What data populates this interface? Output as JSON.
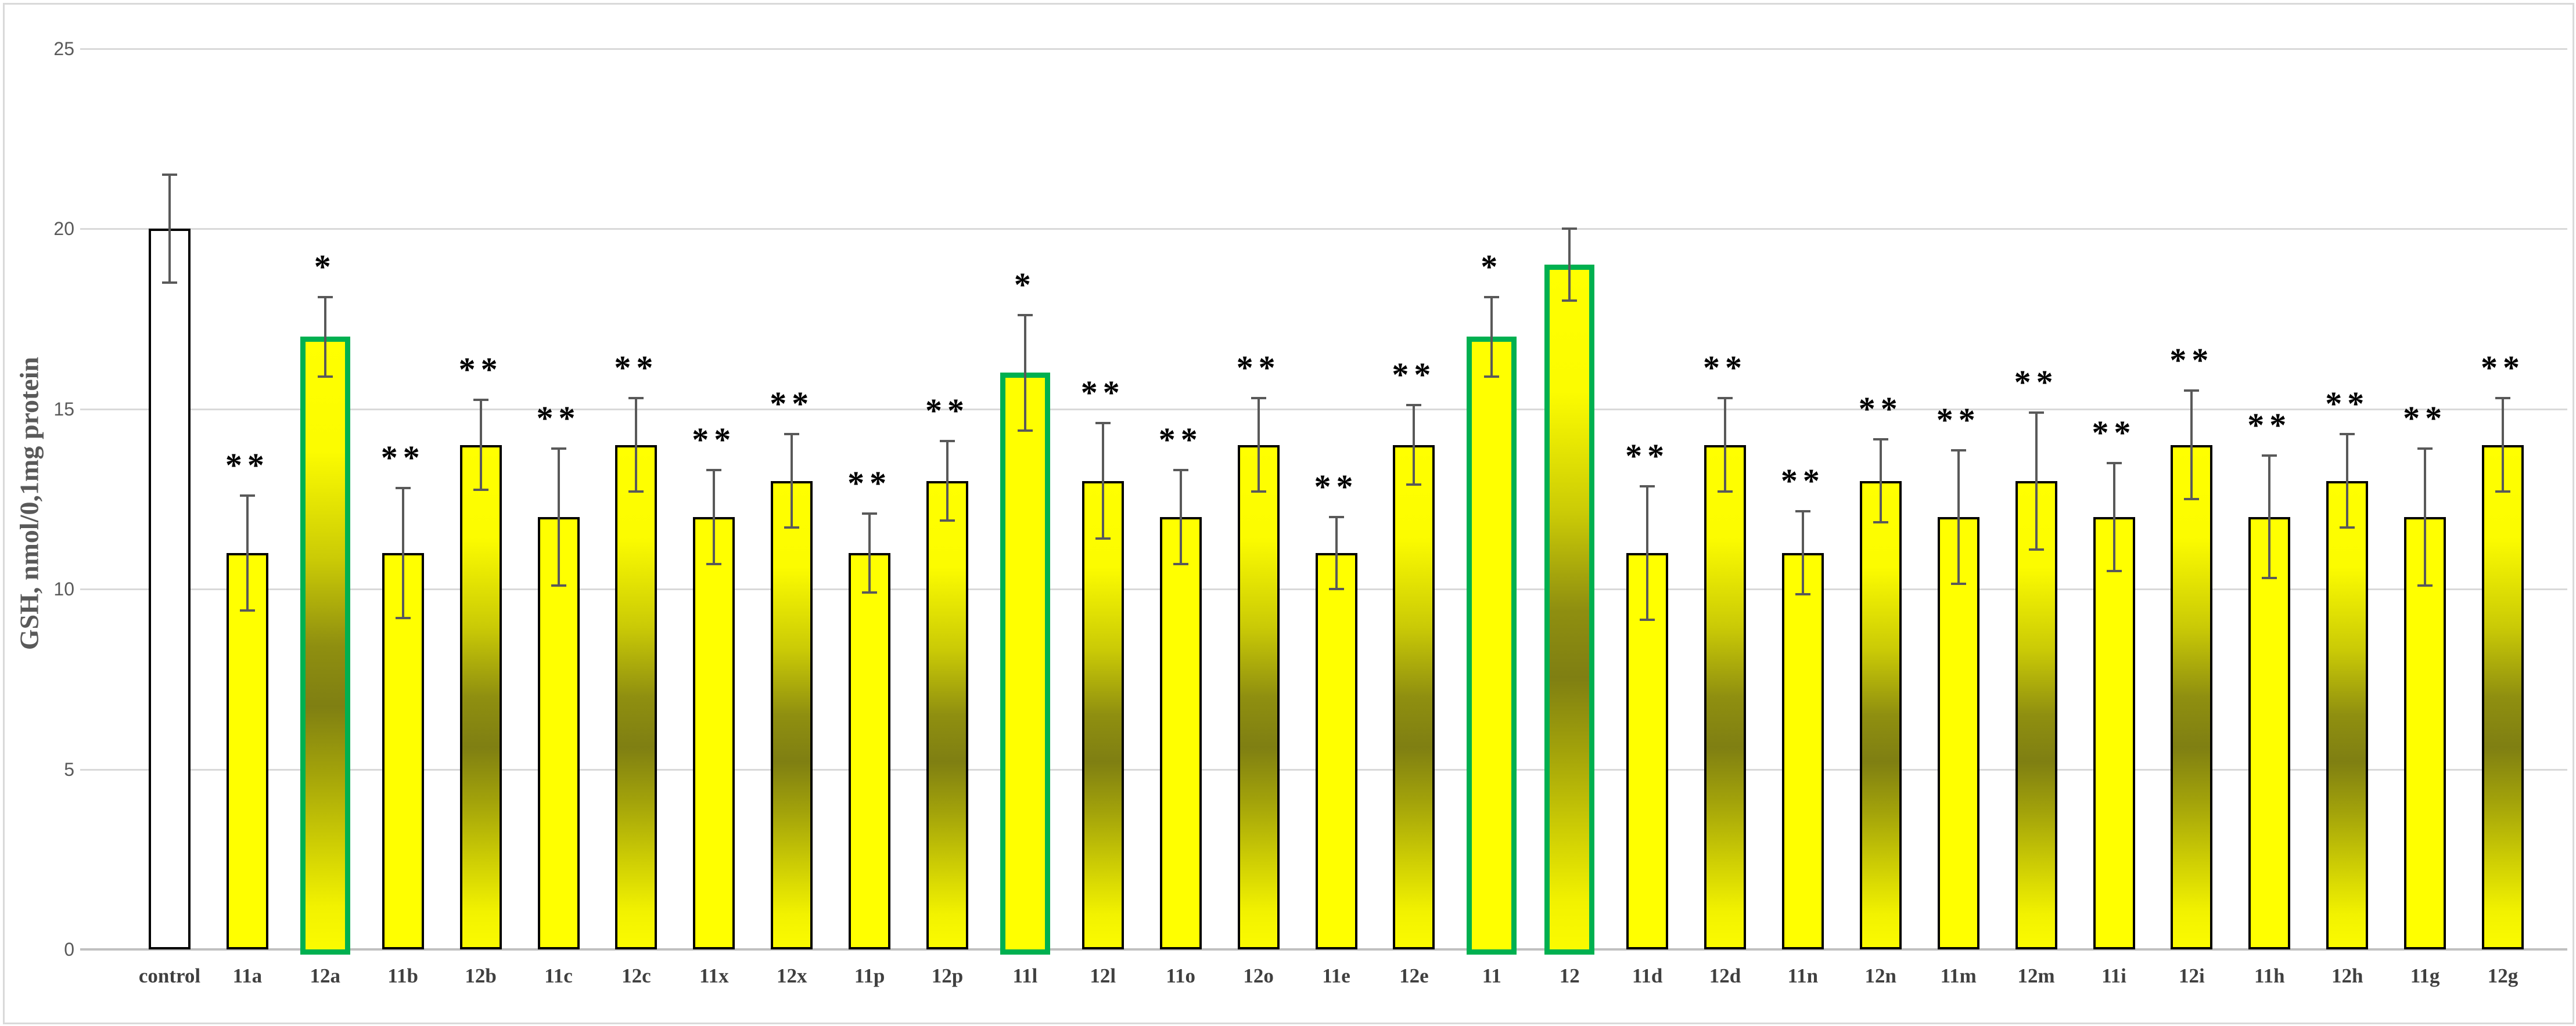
{
  "chart_data": {
    "type": "bar",
    "title": "",
    "xlabel": "",
    "ylabel": "GSH, nmol/0,1mg protein",
    "ylim": [
      0,
      25
    ],
    "yticks": [
      0,
      5,
      10,
      15,
      20,
      25
    ],
    "grid": true,
    "legend": false,
    "categories": [
      "control",
      "11a",
      "12a",
      "11b",
      "12b",
      "11c",
      "12c",
      "11x",
      "12x",
      "11p",
      "12p",
      "11l",
      "12l",
      "11o",
      "12o",
      "11e",
      "12e",
      "11",
      "12",
      "11d",
      "12d",
      "11n",
      "12n",
      "11m",
      "12m",
      "11i",
      "12i",
      "11h",
      "12h",
      "11g",
      "12g"
    ],
    "values": [
      20,
      11,
      17,
      11,
      14,
      12,
      14,
      12,
      13,
      11,
      13,
      16,
      13,
      12,
      14,
      11,
      14,
      17,
      19,
      11,
      14,
      11,
      13,
      12,
      13,
      12,
      14,
      12,
      13,
      12,
      14
    ],
    "errors": [
      1.5,
      1.6,
      1.1,
      1.8,
      1.25,
      1.9,
      1.3,
      1.3,
      1.3,
      1.1,
      1.1,
      1.6,
      1.6,
      1.3,
      1.3,
      1.0,
      1.1,
      1.1,
      1.0,
      1.85,
      1.3,
      1.15,
      1.15,
      1.85,
      1.9,
      1.5,
      1.5,
      1.7,
      1.3,
      1.9,
      1.3
    ],
    "significance": [
      "",
      "**",
      "*",
      "**",
      "**",
      "**",
      "**",
      "**",
      "**",
      "**",
      "**",
      "*",
      "**",
      "**",
      "**",
      "**",
      "**",
      "*",
      "",
      "**",
      "**",
      "**",
      "**",
      "**",
      "**",
      "**",
      "**",
      "**",
      "**",
      "**",
      "**"
    ],
    "bar_fill": [
      "white",
      "yellow",
      "gradient",
      "yellow",
      "gradient",
      "yellow",
      "gradient",
      "yellow",
      "gradient",
      "yellow",
      "gradient",
      "yellow",
      "gradient",
      "yellow",
      "gradient",
      "yellow",
      "gradient",
      "yellow",
      "gradient",
      "yellow",
      "gradient",
      "yellow",
      "gradient",
      "yellow",
      "gradient",
      "yellow",
      "gradient",
      "yellow",
      "gradient",
      "yellow",
      "gradient"
    ],
    "highlighted": [
      false,
      false,
      true,
      false,
      false,
      false,
      false,
      false,
      false,
      false,
      false,
      true,
      false,
      false,
      false,
      false,
      false,
      true,
      true,
      false,
      false,
      false,
      false,
      false,
      false,
      false,
      false,
      false,
      false,
      false,
      false
    ],
    "colors": {
      "bar_yellow": "#FFFF00",
      "bar_gradient_dark": "#7F7F12",
      "bar_border": "#000000",
      "highlight_border": "#00B050",
      "error_bar": "#595959",
      "gridline": "#D9D9D9",
      "baseline": "#C0C0C0",
      "axis_text": "#595959",
      "category_text": "#404040",
      "significance_text": "#000000",
      "background": "#FFFFFF",
      "chart_border": "#D9D9D9"
    }
  }
}
